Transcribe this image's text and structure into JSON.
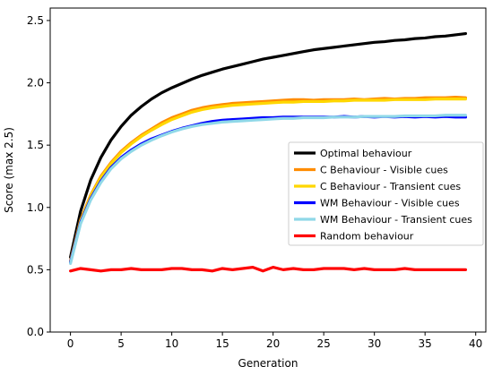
{
  "chart_data": {
    "type": "line",
    "title": "",
    "xlabel": "Generation",
    "ylabel": "Score (max 2.5)",
    "xlim": [
      -2,
      41
    ],
    "ylim": [
      0,
      2.6
    ],
    "x_ticks": [
      0,
      5,
      10,
      15,
      20,
      25,
      30,
      35,
      40
    ],
    "y_ticks": [
      0.0,
      0.5,
      1.0,
      1.5,
      2.0,
      2.5
    ],
    "y_tick_labels": [
      "0.0",
      "0.5",
      "1.0",
      "1.5",
      "2.0",
      "2.5"
    ],
    "grid": false,
    "legend_position": "center-right",
    "x": [
      0,
      1,
      2,
      3,
      4,
      5,
      6,
      7,
      8,
      9,
      10,
      11,
      12,
      13,
      14,
      15,
      16,
      17,
      18,
      19,
      20,
      21,
      22,
      23,
      24,
      25,
      26,
      27,
      28,
      29,
      30,
      31,
      32,
      33,
      34,
      35,
      36,
      37,
      38,
      39
    ],
    "series": [
      {
        "name": "Optimal behaviour",
        "color": "#000000",
        "values": [
          0.6,
          0.97,
          1.22,
          1.4,
          1.54,
          1.65,
          1.74,
          1.81,
          1.87,
          1.92,
          1.96,
          1.995,
          2.03,
          2.06,
          2.085,
          2.11,
          2.13,
          2.15,
          2.17,
          2.19,
          2.205,
          2.22,
          2.235,
          2.25,
          2.265,
          2.275,
          2.285,
          2.295,
          2.305,
          2.315,
          2.325,
          2.33,
          2.34,
          2.345,
          2.355,
          2.36,
          2.37,
          2.375,
          2.385,
          2.395
        ]
      },
      {
        "name": "C Behaviour - Visible cues",
        "color": "#ff8c00",
        "values": [
          0.57,
          0.9,
          1.1,
          1.25,
          1.36,
          1.45,
          1.52,
          1.58,
          1.63,
          1.68,
          1.72,
          1.75,
          1.78,
          1.8,
          1.815,
          1.825,
          1.835,
          1.84,
          1.845,
          1.85,
          1.855,
          1.86,
          1.865,
          1.865,
          1.86,
          1.865,
          1.865,
          1.865,
          1.87,
          1.865,
          1.87,
          1.875,
          1.87,
          1.875,
          1.875,
          1.88,
          1.88,
          1.88,
          1.885,
          1.88
        ]
      },
      {
        "name": "C Behaviour - Transient cues",
        "color": "#ffd700",
        "values": [
          0.56,
          0.89,
          1.09,
          1.24,
          1.35,
          1.44,
          1.51,
          1.57,
          1.62,
          1.665,
          1.705,
          1.735,
          1.765,
          1.785,
          1.8,
          1.81,
          1.82,
          1.825,
          1.83,
          1.835,
          1.84,
          1.845,
          1.845,
          1.85,
          1.85,
          1.85,
          1.855,
          1.855,
          1.86,
          1.86,
          1.86,
          1.86,
          1.865,
          1.865,
          1.865,
          1.865,
          1.87,
          1.87,
          1.87,
          1.87
        ]
      },
      {
        "name": "WM Behaviour - Visible cues",
        "color": "#0000ff",
        "values": [
          0.56,
          0.88,
          1.07,
          1.21,
          1.32,
          1.4,
          1.46,
          1.51,
          1.55,
          1.58,
          1.61,
          1.635,
          1.655,
          1.675,
          1.69,
          1.7,
          1.705,
          1.71,
          1.715,
          1.72,
          1.72,
          1.725,
          1.725,
          1.725,
          1.725,
          1.725,
          1.725,
          1.73,
          1.725,
          1.73,
          1.725,
          1.73,
          1.725,
          1.73,
          1.725,
          1.73,
          1.725,
          1.73,
          1.725,
          1.725
        ]
      },
      {
        "name": "WM Behaviour - Transient cues",
        "color": "#8fd8e8",
        "values": [
          0.55,
          0.87,
          1.06,
          1.2,
          1.31,
          1.39,
          1.45,
          1.5,
          1.54,
          1.575,
          1.605,
          1.63,
          1.65,
          1.665,
          1.675,
          1.685,
          1.69,
          1.695,
          1.7,
          1.705,
          1.71,
          1.715,
          1.715,
          1.72,
          1.72,
          1.72,
          1.725,
          1.725,
          1.725,
          1.73,
          1.73,
          1.73,
          1.73,
          1.735,
          1.735,
          1.735,
          1.735,
          1.74,
          1.74,
          1.74
        ]
      },
      {
        "name": "Random behaviour",
        "color": "#ff0000",
        "values": [
          0.49,
          0.51,
          0.5,
          0.49,
          0.5,
          0.5,
          0.51,
          0.5,
          0.5,
          0.5,
          0.51,
          0.51,
          0.5,
          0.5,
          0.49,
          0.51,
          0.5,
          0.51,
          0.52,
          0.49,
          0.52,
          0.5,
          0.51,
          0.5,
          0.5,
          0.51,
          0.51,
          0.51,
          0.5,
          0.51,
          0.5,
          0.5,
          0.5,
          0.51,
          0.5,
          0.5,
          0.5,
          0.5,
          0.5,
          0.5
        ]
      }
    ]
  }
}
